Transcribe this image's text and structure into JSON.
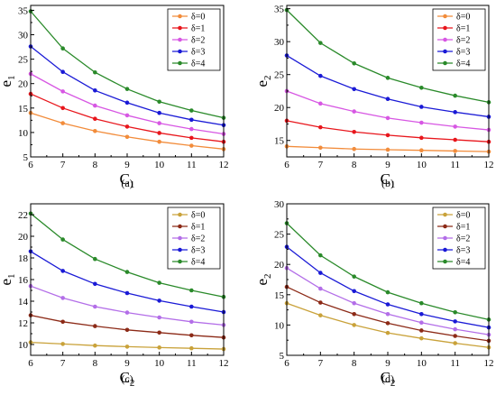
{
  "chart_data": [
    {
      "type": "line",
      "panel_label": "(a)",
      "xlabel": {
        "base": "C",
        "sub": "1"
      },
      "ylabel": {
        "base": "e",
        "sub": "1"
      },
      "xlim": [
        6,
        12
      ],
      "ylim": [
        5,
        36
      ],
      "xticks": [
        6,
        7,
        8,
        9,
        10,
        11,
        12
      ],
      "yticks": [
        5,
        10,
        15,
        20,
        25,
        30,
        35
      ],
      "x": [
        6,
        7,
        8,
        9,
        10,
        11,
        12
      ],
      "legend_position": "top-right",
      "series": [
        {
          "name": "δ=0",
          "color": "#f28c3b",
          "values": [
            14.0,
            11.9,
            10.3,
            9.1,
            8.1,
            7.3,
            6.6
          ]
        },
        {
          "name": "δ=1",
          "color": "#e8161c",
          "values": [
            17.9,
            15.0,
            12.8,
            11.2,
            9.9,
            8.9,
            8.1
          ]
        },
        {
          "name": "δ=2",
          "color": "#d757e3",
          "values": [
            22.0,
            18.4,
            15.5,
            13.5,
            11.9,
            10.7,
            9.7
          ]
        },
        {
          "name": "δ=3",
          "color": "#1a1ad6",
          "values": [
            27.6,
            22.4,
            18.6,
            16.1,
            14.0,
            12.6,
            11.5
          ]
        },
        {
          "name": "δ=4",
          "color": "#2a8a2a",
          "values": [
            34.8,
            27.2,
            22.3,
            18.9,
            16.3,
            14.5,
            13.0
          ]
        }
      ]
    },
    {
      "type": "line",
      "panel_label": "(b)",
      "xlabel": {
        "base": "C",
        "sub": "1"
      },
      "ylabel": {
        "base": "e",
        "sub": "2"
      },
      "xlim": [
        6,
        12
      ],
      "ylim": [
        12.5,
        35.5
      ],
      "xticks": [
        6,
        7,
        8,
        9,
        10,
        11,
        12
      ],
      "yticks": [
        15,
        20,
        25,
        30,
        35
      ],
      "x": [
        6,
        7,
        8,
        9,
        10,
        11,
        12
      ],
      "legend_position": "top-right",
      "series": [
        {
          "name": "δ=0",
          "color": "#f28c3b",
          "values": [
            14.1,
            13.9,
            13.7,
            13.6,
            13.5,
            13.4,
            13.3
          ]
        },
        {
          "name": "δ=1",
          "color": "#e8161c",
          "values": [
            18.0,
            17.0,
            16.3,
            15.8,
            15.4,
            15.1,
            14.8
          ]
        },
        {
          "name": "δ=2",
          "color": "#d757e3",
          "values": [
            22.5,
            20.6,
            19.4,
            18.4,
            17.7,
            17.1,
            16.6
          ]
        },
        {
          "name": "δ=3",
          "color": "#1a1ad6",
          "values": [
            27.9,
            24.8,
            22.8,
            21.3,
            20.1,
            19.3,
            18.6
          ]
        },
        {
          "name": "δ=4",
          "color": "#2a8a2a",
          "values": [
            34.8,
            29.8,
            26.7,
            24.5,
            23.0,
            21.8,
            20.8
          ]
        }
      ]
    },
    {
      "type": "line",
      "panel_label": "(c)",
      "xlabel": {
        "base": "C",
        "sub": "2"
      },
      "ylabel": {
        "base": "e",
        "sub": "1"
      },
      "xlim": [
        6,
        12
      ],
      "ylim": [
        9,
        23
      ],
      "xticks": [
        6,
        7,
        8,
        9,
        10,
        11,
        12
      ],
      "yticks": [
        10,
        12,
        14,
        16,
        18,
        20,
        22
      ],
      "x": [
        6,
        7,
        8,
        9,
        10,
        11,
        12
      ],
      "legend_position": "top-right",
      "series": [
        {
          "name": "δ=0",
          "color": "#c9a23a",
          "values": [
            10.2,
            10.05,
            9.9,
            9.8,
            9.72,
            9.65,
            9.58
          ]
        },
        {
          "name": "δ=1",
          "color": "#8c2a17",
          "values": [
            12.7,
            12.1,
            11.7,
            11.35,
            11.1,
            10.85,
            10.65
          ]
        },
        {
          "name": "δ=2",
          "color": "#b36ee8",
          "values": [
            15.4,
            14.3,
            13.5,
            12.95,
            12.5,
            12.1,
            11.8
          ]
        },
        {
          "name": "δ=3",
          "color": "#1a1ad6",
          "values": [
            18.6,
            16.8,
            15.6,
            14.75,
            14.05,
            13.5,
            13.0
          ]
        },
        {
          "name": "δ=4",
          "color": "#2a8a2a",
          "values": [
            22.1,
            19.7,
            17.9,
            16.7,
            15.7,
            15.0,
            14.4
          ]
        }
      ]
    },
    {
      "type": "line",
      "panel_label": "(d)",
      "xlabel": {
        "base": "C",
        "sub": "2"
      },
      "ylabel": {
        "base": "e",
        "sub": "2"
      },
      "xlim": [
        6,
        12
      ],
      "ylim": [
        5,
        30
      ],
      "xticks": [
        6,
        7,
        8,
        9,
        10,
        11,
        12
      ],
      "yticks": [
        5,
        10,
        15,
        20,
        25,
        30
      ],
      "x": [
        6,
        7,
        8,
        9,
        10,
        11,
        12
      ],
      "legend_position": "top-right",
      "series": [
        {
          "name": "δ=0",
          "color": "#c9a23a",
          "values": [
            13.6,
            11.6,
            10.0,
            8.7,
            7.8,
            7.0,
            6.3
          ]
        },
        {
          "name": "δ=1",
          "color": "#8c2a17",
          "values": [
            16.3,
            13.7,
            11.8,
            10.3,
            9.1,
            8.2,
            7.4
          ]
        },
        {
          "name": "δ=2",
          "color": "#b36ee8",
          "values": [
            19.4,
            16.0,
            13.6,
            11.8,
            10.4,
            9.3,
            8.4
          ]
        },
        {
          "name": "δ=3",
          "color": "#1a1ad6",
          "values": [
            22.9,
            18.6,
            15.6,
            13.4,
            11.8,
            10.6,
            9.6
          ]
        },
        {
          "name": "δ=4",
          "color": "#2a8a2a",
          "values": [
            26.8,
            21.5,
            18.0,
            15.4,
            13.6,
            12.1,
            10.9
          ]
        }
      ]
    }
  ]
}
